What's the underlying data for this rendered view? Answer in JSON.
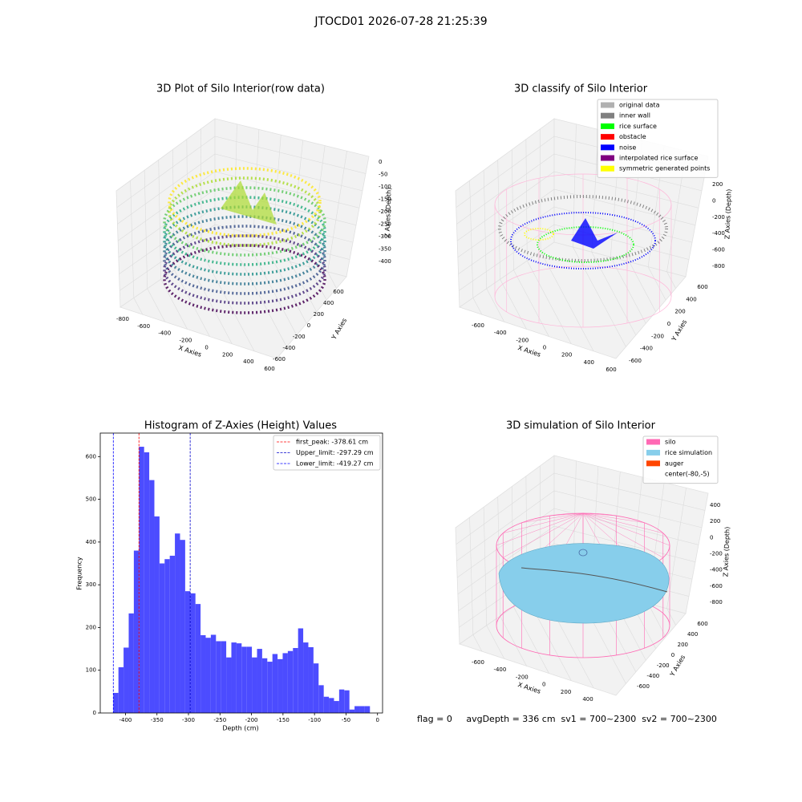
{
  "title": "JTOCD01 2026-07-28 21:25:39",
  "footer": "flag = 0     avgDepth = 336 cm  sv1 = 700~2300  sv2 = 700~2300",
  "chart_data": [
    {
      "type": "scatter3d",
      "title": "3D Plot of Silo Interior(row data)",
      "xlabel": "X Axies",
      "ylabel": "Y Axies",
      "zlabel": "Z Axies (Depth)",
      "xlim": [
        -800,
        600
      ],
      "xticks": [
        -800,
        -600,
        -400,
        -200,
        0,
        200,
        400,
        600
      ],
      "ylim": [
        -600,
        600
      ],
      "yticks": [
        -600,
        -400,
        -200,
        0,
        200,
        400,
        600
      ],
      "zlim": [
        -400,
        0
      ],
      "zticks": [
        -400,
        -350,
        -300,
        -250,
        -200,
        -150,
        -100,
        -50,
        0
      ]
    },
    {
      "type": "scatter3d",
      "title": "3D classify of Silo Interior",
      "xlabel": "X Axies",
      "ylabel": "Y Axies",
      "zlabel": "Z Axies (Depth)",
      "xlim": [
        -600,
        600
      ],
      "xticks": [
        -600,
        -400,
        -200,
        0,
        200,
        400,
        600
      ],
      "ylim": [
        -600,
        600
      ],
      "yticks": [
        -600,
        -400,
        -200,
        0,
        200,
        400,
        600
      ],
      "zlim": [
        -800,
        200
      ],
      "zticks": [
        -800,
        -600,
        -400,
        -200,
        0,
        200
      ],
      "series": [
        {
          "name": "original data",
          "color": "#b0b0b0"
        },
        {
          "name": "inner wall",
          "color": "#808080"
        },
        {
          "name": "rice surface",
          "color": "#00ff00"
        },
        {
          "name": "obstacle",
          "color": "#ff0000"
        },
        {
          "name": "noise",
          "color": "#0000ff"
        },
        {
          "name": "interpolated rice surface",
          "color": "#800080"
        },
        {
          "name": "symmetric generated points",
          "color": "#ffff00"
        }
      ]
    },
    {
      "type": "histogram",
      "title": "Histogram of Z-Axies (Height) Values",
      "xlabel": "Depth (cm)",
      "ylabel": "Frequency",
      "color": "#4c4cff",
      "bins": [
        -419.27,
        -411.13,
        -402.98,
        -394.84,
        -386.69,
        -378.55,
        -370.4,
        -362.26,
        -354.11,
        -345.97,
        -337.82,
        -329.68,
        -321.53,
        -313.39,
        -305.24,
        -297.1,
        -288.95,
        -280.81,
        -272.66,
        -264.52,
        -256.37,
        -248.23,
        -240.08,
        -231.94,
        -223.79,
        -215.65,
        -207.5,
        -199.36,
        -191.21,
        -183.07,
        -174.92,
        -166.78,
        -158.63,
        -150.49,
        -142.34,
        -134.2,
        -126.05,
        -117.91,
        -109.76,
        -101.62,
        -93.47,
        -85.33,
        -77.18,
        -69.04,
        -60.89,
        -52.75,
        -44.6,
        -36.46,
        -28.31,
        -20.17,
        -12.02
      ],
      "values": [
        47,
        107,
        153,
        233,
        380,
        623,
        610,
        545,
        460,
        350,
        360,
        368,
        420,
        405,
        285,
        280,
        255,
        182,
        176,
        183,
        168,
        168,
        130,
        165,
        163,
        155,
        155,
        130,
        150,
        128,
        120,
        138,
        126,
        140,
        145,
        152,
        198,
        165,
        154,
        116,
        65,
        38,
        35,
        28,
        55,
        53,
        8,
        16,
        16,
        16
      ],
      "lines": [
        {
          "name": "first_peak: -378.61 cm",
          "value": -378.61,
          "color": "#ff0000"
        },
        {
          "name": "Upper_limit: -297.29 cm",
          "value": -297.29,
          "color": "#0000cc"
        },
        {
          "name": "Lower_limit: -419.27 cm",
          "value": -419.27,
          "color": "#0000ff"
        }
      ],
      "xlim": [
        -440,
        8
      ],
      "xticks": [
        -400,
        -350,
        -300,
        -250,
        -200,
        -150,
        -100,
        -50,
        0
      ],
      "ylim": [
        0,
        655
      ],
      "yticks": [
        0,
        100,
        200,
        300,
        400,
        500,
        600
      ]
    },
    {
      "type": "surface3d",
      "title": "3D simulation of Silo Interior",
      "xlabel": "X Axies",
      "ylabel": "Y Axies",
      "zlabel": "Z Axies (Depth)",
      "xlim": [
        -600,
        400
      ],
      "xticks": [
        -600,
        -400,
        -200,
        0,
        200,
        400
      ],
      "ylim": [
        -600,
        600
      ],
      "yticks": [
        -600,
        -400,
        -200,
        0,
        200,
        400,
        600
      ],
      "zlim": [
        -800,
        400
      ],
      "zticks": [
        -800,
        -600,
        -400,
        -200,
        0,
        200,
        400
      ],
      "series": [
        {
          "name": "silo",
          "color": "#ff69b4"
        },
        {
          "name": "rice simulation",
          "color": "#87ceeb"
        },
        {
          "name": "auger",
          "color": "#ff4500"
        },
        {
          "name": "center(-80,-5)",
          "color": "#ffffff"
        }
      ]
    }
  ]
}
